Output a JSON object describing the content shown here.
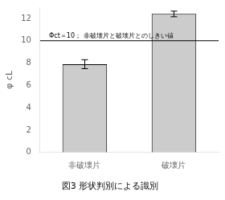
{
  "chart_data": {
    "type": "bar",
    "title": "図3 形状判別による識別",
    "categories": [
      "非破壊片",
      "破壊片"
    ],
    "values": [
      7.9,
      12.4
    ],
    "errors": [
      0.4,
      0.25
    ],
    "color": "#cccccc",
    "ylabel": "φ cL",
    "ylim": [
      0,
      13
    ],
    "yticks": [
      0,
      2,
      4,
      6,
      8,
      10,
      12
    ],
    "grid": false,
    "threshold": 10,
    "threshold_label": "Φct＝10； 非破壊片と破壊片とのしきい値"
  }
}
